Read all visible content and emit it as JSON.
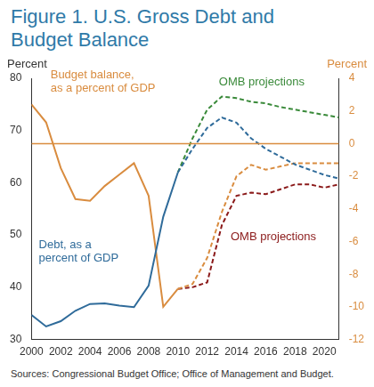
{
  "chart_data": {
    "type": "line",
    "title": "Figure 1. U.S. Gross Debt and Budget Balance",
    "ylabel": "Percent",
    "y2label": "Percent",
    "source": "Sources: Congressional Budget Office; Office of Management and Budget.",
    "x": [
      2000,
      2001,
      2002,
      2003,
      2004,
      2005,
      2006,
      2007,
      2008,
      2009,
      2010,
      2011,
      2012,
      2013,
      2014,
      2015,
      2016,
      2017,
      2018,
      2019,
      2020,
      2021
    ],
    "xlim": [
      2000,
      2021
    ],
    "xticks": [
      2000,
      2002,
      2004,
      2006,
      2008,
      2010,
      2012,
      2014,
      2016,
      2018,
      2020
    ],
    "ylim": [
      30,
      80
    ],
    "yticks": [
      30,
      40,
      50,
      60,
      70,
      80
    ],
    "y2lim": [
      -12,
      4
    ],
    "y2ticks": [
      -12,
      -10,
      -8,
      -6,
      -4,
      -2,
      0,
      2,
      4
    ],
    "grid": false,
    "series": [
      {
        "color": "#2f6b9a",
        "line_style": "solid",
        "axis": "y",
        "values": [
          34.7,
          32.5,
          33.5,
          35.5,
          36.8,
          36.9,
          36.5,
          36.2,
          40.3,
          53.5,
          62,
          null,
          null,
          null,
          null,
          null,
          null,
          null,
          null,
          null,
          null,
          null
        ]
      },
      {
        "color": "#2f6b9a",
        "line_style": "dashed",
        "axis": "y",
        "values": [
          null,
          null,
          null,
          null,
          null,
          null,
          null,
          null,
          null,
          null,
          62,
          66.5,
          70.5,
          72.5,
          71.5,
          68.5,
          66.5,
          65,
          63.5,
          62.5,
          61.5,
          60.8
        ]
      },
      {
        "color": "#3a8a3a",
        "line_style": "dashed",
        "axis": "y",
        "values": [
          null,
          null,
          null,
          null,
          null,
          null,
          null,
          null,
          null,
          null,
          62,
          68.5,
          74,
          76.5,
          76.2,
          75.5,
          75.2,
          74.5,
          74,
          73.5,
          73,
          72.5
        ]
      },
      {
        "color": "#d98c3f",
        "line_style": "solid",
        "axis": "y2",
        "values": [
          2.4,
          1.3,
          -1.5,
          -3.4,
          -3.5,
          -2.6,
          -1.9,
          -1.2,
          -3.2,
          -10,
          -8.9,
          null,
          null,
          null,
          null,
          null,
          null,
          null,
          null,
          null,
          null,
          null
        ]
      },
      {
        "color": "#d98c3f",
        "line_style": "dashed",
        "axis": "y2",
        "values": [
          null,
          null,
          null,
          null,
          null,
          null,
          null,
          null,
          null,
          null,
          -8.9,
          -8.6,
          -7,
          -4.2,
          -2,
          -1.3,
          -1.6,
          -1.4,
          -1.2,
          -1.2,
          -1.2,
          -1.2
        ]
      },
      {
        "color": "#8b1a1a",
        "line_style": "dashed",
        "axis": "y2",
        "values": [
          null,
          null,
          null,
          null,
          null,
          null,
          null,
          null,
          null,
          null,
          -8.9,
          -8.8,
          -8.5,
          -5,
          -3.2,
          -3,
          -3.1,
          -2.8,
          -2.5,
          -2.5,
          -2.7,
          -2.5
        ]
      }
    ],
    "hlines": [
      {
        "value": 0,
        "axis": "y2",
        "color": "#d98c3f"
      }
    ],
    "annotations": [
      {
        "text": [
          "Budget balance,",
          "as a percent of GDP"
        ],
        "x": 2001.3,
        "y": 77.5,
        "axis": "y",
        "color": "#d98c3f"
      },
      {
        "text": [
          "Debt, as a",
          "percent of GDP"
        ],
        "x": 2000.5,
        "y": 45,
        "axis": "y",
        "color": "#2f6b9a"
      },
      {
        "text": [
          "OMB projections"
        ],
        "x": 2012.8,
        "y": 78.6,
        "axis": "y",
        "color": "#3a8a3a"
      },
      {
        "text": [
          "OMB projections"
        ],
        "x": 2013.6,
        "y": -5.9,
        "axis": "y2",
        "color": "#8b1a1a"
      }
    ]
  }
}
